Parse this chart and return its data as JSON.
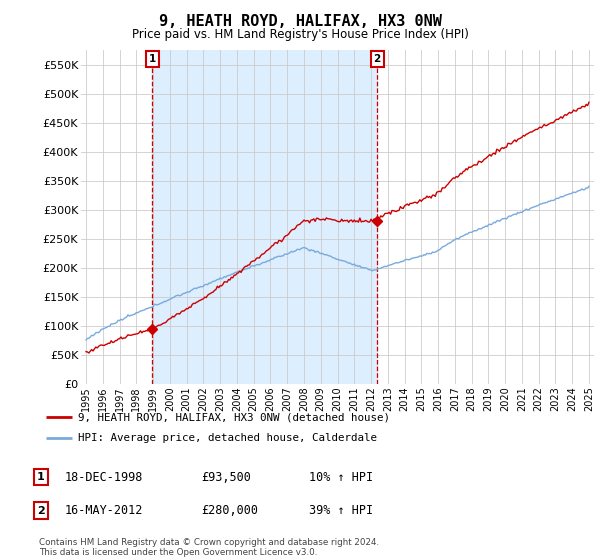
{
  "title": "9, HEATH ROYD, HALIFAX, HX3 0NW",
  "subtitle": "Price paid vs. HM Land Registry's House Price Index (HPI)",
  "ylim": [
    0,
    575000
  ],
  "yticks": [
    0,
    50000,
    100000,
    150000,
    200000,
    250000,
    300000,
    350000,
    400000,
    450000,
    500000,
    550000
  ],
  "ytick_labels": [
    "£0",
    "£50K",
    "£100K",
    "£150K",
    "£200K",
    "£250K",
    "£300K",
    "£350K",
    "£400K",
    "£450K",
    "£500K",
    "£550K"
  ],
  "line1_color": "#cc0000",
  "line2_color": "#7aaadd",
  "shade_color": "#ddeeff",
  "line1_label": "9, HEATH ROYD, HALIFAX, HX3 0NW (detached house)",
  "line2_label": "HPI: Average price, detached house, Calderdale",
  "sale1_date": "18-DEC-1998",
  "sale1_price": 93500,
  "sale1_hpi": "10% ↑ HPI",
  "sale2_date": "16-MAY-2012",
  "sale2_price": 280000,
  "sale2_hpi": "39% ↑ HPI",
  "footer": "Contains HM Land Registry data © Crown copyright and database right 2024.\nThis data is licensed under the Open Government Licence v3.0.",
  "grid_color": "#cccccc",
  "sale1_x": 1998.96,
  "sale2_x": 2012.37,
  "xlim_left": 1994.7,
  "xlim_right": 2025.3,
  "title_fontsize": 11,
  "subtitle_fontsize": 8.5,
  "tick_fontsize": 8,
  "legend_fontsize": 8
}
